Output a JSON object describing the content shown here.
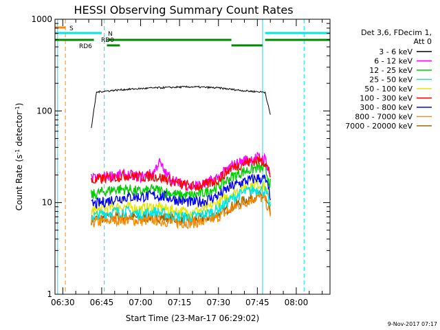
{
  "chart_data": {
    "type": "line",
    "title": "HESSI Observing Summary Count Rates",
    "xlabel": "Start Time (23-Mar-17 06:29:02)",
    "ylabel_main": "Count Rate (s",
    "ylabel_sup1": "-1",
    "ylabel_mid": " detector",
    "ylabel_sup2": "-1",
    "ylabel_end": ")",
    "yscale": "log",
    "ylim": [
      1,
      1000
    ],
    "xlim": [
      "06:27",
      "08:13"
    ],
    "x_ticks": [
      "06:30",
      "06:45",
      "07:00",
      "07:15",
      "07:30",
      "07:45",
      "08:00"
    ],
    "y_ticks": [
      "1",
      "10",
      "100",
      "1000"
    ],
    "legend": {
      "placement": "right",
      "header": [
        "Det 3,6, FDecim 1,",
        "Att 0"
      ],
      "entries": [
        {
          "label": "3 - 6 keV",
          "color": "#000000"
        },
        {
          "label": "6 - 12 keV",
          "color": "#ff00ff"
        },
        {
          "label": "12 - 25 keV",
          "color": "#00cc00"
        },
        {
          "label": "25 - 50 keV",
          "color": "#00e5e5"
        },
        {
          "label": "50 - 100 keV",
          "color": "#e5e500"
        },
        {
          "label": "100 - 300 keV",
          "color": "#ff0000"
        },
        {
          "label": "300 - 800 keV",
          "color": "#0000ff"
        },
        {
          "label": "800 - 7000 keV",
          "color": "#ff8800"
        },
        {
          "label": "7000 - 20000 keV",
          "color": "#996600"
        }
      ]
    },
    "state_bars": [
      {
        "label": "S",
        "color": "#ff8800",
        "segments": [
          [
            "06:27",
            "06:31"
          ]
        ]
      },
      {
        "label": "N",
        "color": "#00e5e5",
        "segments": [
          [
            "06:27",
            "06:45"
          ],
          [
            "07:48",
            "08:13"
          ]
        ]
      },
      {
        "label": "RD0",
        "color": "#008800",
        "segments": [
          [
            "06:27",
            "06:42"
          ],
          [
            "06:47",
            "07:35"
          ],
          [
            "07:48",
            "08:13"
          ]
        ]
      },
      {
        "label": "RD6",
        "color": "#008800",
        "segments": [
          [
            "06:47",
            "06:52"
          ],
          [
            "07:35",
            "07:47"
          ]
        ]
      }
    ],
    "vlines": [
      {
        "x": "06:28",
        "color": "#00e5e5",
        "style": "solid"
      },
      {
        "x": "06:31",
        "color": "#ff8800",
        "style": "dashed"
      },
      {
        "x": "06:46",
        "color": "#00e5e5",
        "style": "dashed"
      },
      {
        "x": "07:47",
        "color": "#00e5e5",
        "style": "solid"
      },
      {
        "x": "08:03",
        "color": "#00e5e5",
        "style": "dashed"
      }
    ],
    "series": [
      {
        "name": "3 - 6 keV",
        "color": "#000000",
        "x": [
          "06:41",
          "06:43",
          "06:45",
          "06:50",
          "06:55",
          "07:00",
          "07:05",
          "07:10",
          "07:15",
          "07:20",
          "07:25",
          "07:30",
          "07:35",
          "07:40",
          "07:45",
          "07:48",
          "07:50"
        ],
        "y": [
          65,
          160,
          163,
          168,
          172,
          175,
          178,
          180,
          182,
          183,
          181,
          178,
          172,
          166,
          162,
          160,
          90
        ]
      },
      {
        "name": "6 - 12 keV",
        "color": "#ff00ff",
        "x": [
          "06:41",
          "06:45",
          "06:50",
          "06:55",
          "07:00",
          "07:05",
          "07:07",
          "07:10",
          "07:15",
          "07:20",
          "07:25",
          "07:30",
          "07:35",
          "07:40",
          "07:45",
          "07:48",
          "07:50"
        ],
        "y": [
          18,
          19,
          20,
          20,
          19,
          21,
          28,
          20,
          16,
          15,
          16,
          19,
          25,
          29,
          31,
          30,
          20
        ]
      },
      {
        "name": "12 - 25 keV",
        "color": "#00cc00",
        "x": [
          "06:41",
          "06:45",
          "06:50",
          "06:55",
          "07:00",
          "07:05",
          "07:10",
          "07:15",
          "07:20",
          "07:25",
          "07:30",
          "07:35",
          "07:40",
          "07:45",
          "07:48",
          "07:50"
        ],
        "y": [
          12,
          13,
          14,
          14,
          13,
          14,
          13,
          12,
          12,
          13,
          15,
          19,
          22,
          24,
          23,
          16
        ]
      },
      {
        "name": "25 - 50 keV",
        "color": "#00e5e5",
        "x": [
          "06:41",
          "06:45",
          "06:50",
          "06:55",
          "07:00",
          "07:05",
          "07:10",
          "07:15",
          "07:20",
          "07:25",
          "07:30",
          "07:35",
          "07:40",
          "07:45",
          "07:48",
          "07:50"
        ],
        "y": [
          7,
          7.5,
          8,
          8,
          7.5,
          8,
          7.5,
          7,
          7,
          7.5,
          8.5,
          11,
          13,
          14,
          13.5,
          9
        ]
      },
      {
        "name": "50 - 100 keV",
        "color": "#e5e500",
        "x": [
          "06:41",
          "06:45",
          "06:50",
          "06:55",
          "07:00",
          "07:05",
          "07:10",
          "07:15",
          "07:20",
          "07:25",
          "07:30",
          "07:35",
          "07:40",
          "07:45",
          "07:48",
          "07:50"
        ],
        "y": [
          8,
          8.5,
          9,
          9,
          8.5,
          9,
          8.5,
          8,
          8,
          8.5,
          10,
          12.5,
          15,
          16,
          15,
          10
        ]
      },
      {
        "name": "100 - 300 keV",
        "color": "#ff0000",
        "x": [
          "06:41",
          "06:45",
          "06:50",
          "06:55",
          "07:00",
          "07:05",
          "07:10",
          "07:15",
          "07:20",
          "07:25",
          "07:30",
          "07:35",
          "07:40",
          "07:45",
          "07:48",
          "07:50"
        ],
        "y": [
          17,
          18,
          19,
          20,
          19,
          19.5,
          18,
          16,
          15,
          15.5,
          18,
          24,
          27,
          29,
          28,
          20
        ]
      },
      {
        "name": "300 - 800 keV",
        "color": "#0000ff",
        "x": [
          "06:41",
          "06:45",
          "06:50",
          "06:55",
          "07:00",
          "07:05",
          "07:10",
          "07:15",
          "07:20",
          "07:25",
          "07:30",
          "07:35",
          "07:40",
          "07:45",
          "07:48",
          "07:50"
        ],
        "y": [
          9.5,
          10,
          11,
          11.5,
          11.5,
          12,
          11.5,
          10.5,
          10,
          10.5,
          12,
          15,
          17,
          18.5,
          18,
          12
        ]
      },
      {
        "name": "800 - 7000 keV",
        "color": "#ff8800",
        "x": [
          "06:41",
          "06:45",
          "06:50",
          "06:55",
          "07:00",
          "07:05",
          "07:10",
          "07:15",
          "07:20",
          "07:25",
          "07:30",
          "07:35",
          "07:40",
          "07:45",
          "07:48",
          "07:50"
        ],
        "y": [
          6,
          6.2,
          6.5,
          6.5,
          6.3,
          6.5,
          6.2,
          6,
          6,
          6.2,
          7,
          8.5,
          10,
          11.5,
          11,
          7
        ]
      },
      {
        "name": "7000 - 20000 keV",
        "color": "#996600",
        "x": [
          "06:41",
          "06:45",
          "06:50",
          "06:55",
          "07:00",
          "07:05",
          "07:10",
          "07:15",
          "07:20",
          "07:25",
          "07:30",
          "07:35",
          "07:40",
          "07:45",
          "07:48",
          "07:50"
        ],
        "y": [
          6.5,
          6.8,
          7,
          7,
          6.8,
          7,
          6.8,
          6.5,
          6.5,
          6.8,
          7.5,
          9,
          10.5,
          12,
          11.5,
          7.5
        ]
      }
    ]
  },
  "footer_timestamp": "9-Nov-2017 07:17"
}
